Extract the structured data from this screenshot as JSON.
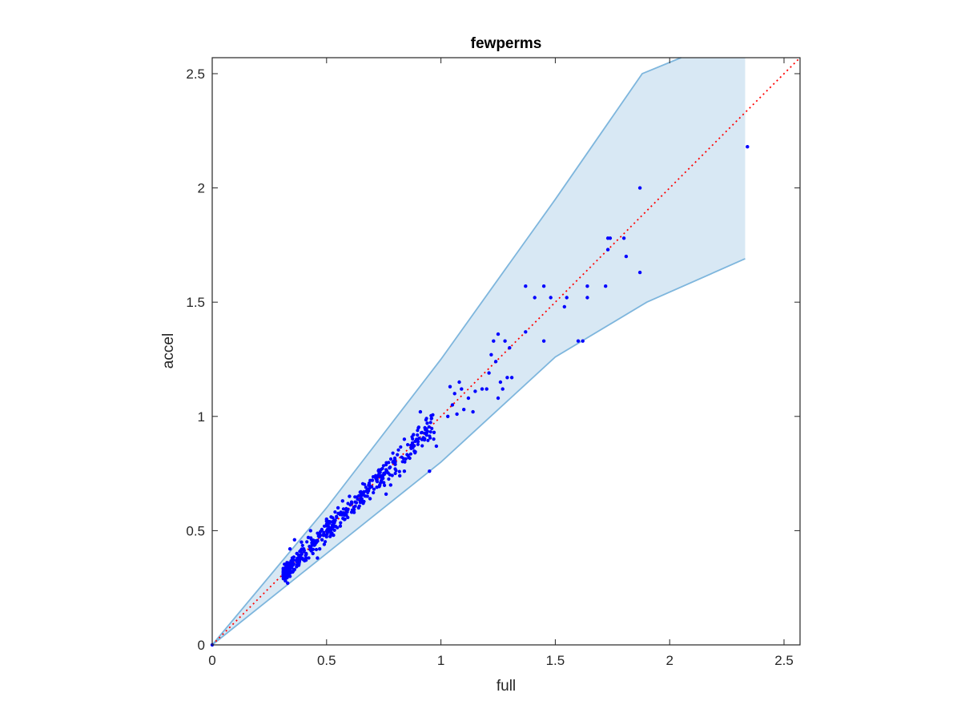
{
  "chart_data": {
    "type": "scatter",
    "title": "fewperms",
    "xlabel": "full",
    "ylabel": "accel",
    "xlim": [
      0,
      2.57
    ],
    "ylim": [
      0,
      2.57
    ],
    "xticks": [
      0,
      0.5,
      1,
      1.5,
      2,
      2.5
    ],
    "xtick_labels": [
      "0",
      "0.5",
      "1",
      "1.5",
      "2",
      "2.5"
    ],
    "yticks": [
      0,
      0.5,
      1,
      1.5,
      2,
      2.5
    ],
    "ytick_labels": [
      "0",
      "0.5",
      "1",
      "1.5",
      "2",
      "2.5"
    ],
    "grid": false,
    "colors": {
      "points": "#0000ff",
      "band_fill": "#d8e8f4",
      "band_edge": "#7eb6dd",
      "identity_line": "#ff0000",
      "axes": "#262626"
    },
    "reference_line": {
      "style": "dotted",
      "x": [
        0,
        2.57
      ],
      "y": [
        0,
        2.57
      ]
    },
    "band": {
      "upper": [
        [
          0,
          0
        ],
        [
          0.5,
          0.6
        ],
        [
          1,
          1.25
        ],
        [
          1.5,
          1.95
        ],
        [
          1.88,
          2.5
        ],
        [
          2.05,
          2.57
        ],
        [
          2.33,
          2.57
        ]
      ],
      "lower": [
        [
          0,
          0
        ],
        [
          0.5,
          0.4
        ],
        [
          1,
          0.8
        ],
        [
          1.5,
          1.26
        ],
        [
          1.9,
          1.5
        ],
        [
          2.33,
          1.69
        ]
      ]
    },
    "points": [
      [
        2.34,
        2.18
      ],
      [
        1.87,
        2.0
      ],
      [
        1.73,
        1.78
      ],
      [
        1.74,
        1.78
      ],
      [
        1.8,
        1.78
      ],
      [
        1.81,
        1.7
      ],
      [
        1.73,
        1.73
      ],
      [
        1.87,
        1.63
      ],
      [
        1.72,
        1.57
      ],
      [
        1.64,
        1.57
      ],
      [
        1.64,
        1.52
      ],
      [
        1.55,
        1.52
      ],
      [
        1.54,
        1.48
      ],
      [
        1.6,
        1.33
      ],
      [
        1.62,
        1.33
      ],
      [
        1.45,
        1.57
      ],
      [
        1.48,
        1.52
      ],
      [
        1.41,
        1.52
      ],
      [
        1.37,
        1.57
      ],
      [
        1.45,
        1.33
      ],
      [
        1.37,
        1.37
      ],
      [
        1.28,
        1.33
      ],
      [
        1.3,
        1.3
      ],
      [
        1.31,
        1.17
      ],
      [
        1.29,
        1.17
      ],
      [
        1.23,
        1.33
      ],
      [
        1.24,
        1.24
      ],
      [
        1.25,
        1.36
      ],
      [
        1.22,
        1.27
      ],
      [
        1.21,
        1.19
      ],
      [
        1.26,
        1.15
      ],
      [
        1.27,
        1.12
      ],
      [
        1.25,
        1.08
      ],
      [
        1.2,
        1.12
      ],
      [
        1.18,
        1.12
      ],
      [
        1.15,
        1.11
      ],
      [
        1.14,
        1.02
      ],
      [
        1.1,
        1.03
      ],
      [
        1.08,
        1.15
      ],
      [
        1.06,
        1.1
      ],
      [
        1.05,
        1.05
      ],
      [
        1.04,
        1.13
      ],
      [
        1.03,
        1.0
      ],
      [
        1.07,
        1.01
      ],
      [
        1.09,
        1.12
      ],
      [
        1.12,
        1.08
      ],
      [
        0.95,
        0.76
      ],
      [
        0.98,
        0.87
      ],
      [
        0.97,
        0.93
      ],
      [
        0.93,
        0.95
      ],
      [
        0.9,
        0.89
      ],
      [
        0.87,
        0.86
      ],
      [
        0.84,
        0.9
      ],
      [
        0.86,
        0.82
      ],
      [
        0.84,
        0.76
      ],
      [
        0.82,
        0.74
      ],
      [
        0.79,
        0.8
      ],
      [
        0.78,
        0.7
      ],
      [
        0.76,
        0.66
      ],
      [
        0.74,
        0.74
      ],
      [
        0.7,
        0.72
      ],
      [
        0.68,
        0.68
      ],
      [
        0.66,
        0.62
      ],
      [
        0.64,
        0.6
      ],
      [
        0.62,
        0.58
      ],
      [
        0.6,
        0.65
      ],
      [
        0.58,
        0.55
      ],
      [
        0.56,
        0.52
      ],
      [
        0.55,
        0.6
      ],
      [
        0.53,
        0.48
      ],
      [
        0.51,
        0.5
      ],
      [
        0.5,
        0.55
      ],
      [
        0.48,
        0.46
      ],
      [
        0.47,
        0.42
      ],
      [
        0.45,
        0.44
      ],
      [
        0.44,
        0.4
      ],
      [
        0.42,
        0.47
      ],
      [
        0.41,
        0.38
      ],
      [
        0.4,
        0.42
      ],
      [
        0.38,
        0.36
      ],
      [
        0.37,
        0.4
      ],
      [
        0.36,
        0.33
      ],
      [
        0.35,
        0.38
      ],
      [
        0.34,
        0.3
      ],
      [
        0.33,
        0.35
      ],
      [
        0.32,
        0.28
      ],
      [
        0.34,
        0.42
      ],
      [
        0.36,
        0.46
      ],
      [
        0.39,
        0.45
      ],
      [
        0.43,
        0.5
      ],
      [
        0.46,
        0.38
      ],
      [
        0.49,
        0.44
      ],
      [
        0.52,
        0.56
      ],
      [
        0.57,
        0.63
      ],
      [
        0.61,
        0.62
      ],
      [
        0.65,
        0.67
      ],
      [
        0.69,
        0.64
      ],
      [
        0.72,
        0.69
      ],
      [
        0.75,
        0.71
      ],
      [
        0.8,
        0.79
      ],
      [
        0.88,
        0.92
      ],
      [
        0.91,
        1.02
      ],
      [
        0.94,
        0.97
      ],
      [
        0.31,
        0.3
      ],
      [
        0.33,
        0.27
      ],
      [
        0.0,
        0.0
      ]
    ],
    "dense_cluster": {
      "x_range": [
        0.31,
        0.97
      ],
      "slope": 1.0,
      "spread": 0.045,
      "count": 420
    }
  }
}
